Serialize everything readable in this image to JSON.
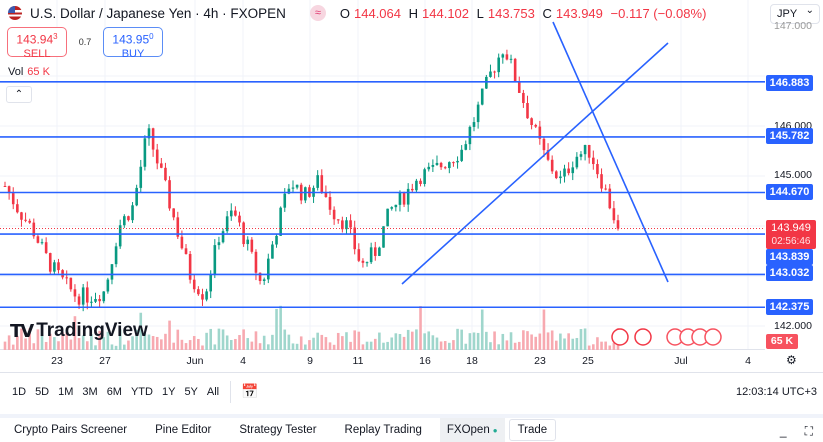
{
  "header": {
    "title": "U.S. Dollar / Japanese Yen · 4h · FXOPEN",
    "indicator_icon": "≈",
    "ohlc": {
      "o": "144.064",
      "h": "144.102",
      "l": "143.753",
      "c": "143.949",
      "change": "−0.117 (−0.08%)"
    }
  },
  "trade": {
    "sell_price": "143.94",
    "sell_sup": "3",
    "sell_label": "SELL",
    "spread": "0.7",
    "buy_price": "143.95",
    "buy_sup": "0",
    "buy_label": "BUY"
  },
  "volume": {
    "label": "Vol",
    "value": "65 K",
    "axis_label": "65 K"
  },
  "symbol_select": "JPY",
  "price_axis": {
    "ticks": [
      "147.000",
      "146.000",
      "145.000",
      "142.000"
    ],
    "scale": {
      "min": 141.5,
      "max": 148.5
    }
  },
  "levels": [
    "146.883",
    "145.782",
    "144.670",
    "143.839",
    "143.032",
    "142.375"
  ],
  "current": {
    "price": "143.949",
    "countdown": "02:56:46"
  },
  "colors": {
    "up": "#089981",
    "down": "#f23645",
    "line": "#2962ff"
  },
  "chart_data": {
    "type": "candlestick",
    "keypoint_closes": [
      144.8,
      144.3,
      143.9,
      143.3,
      142.9,
      142.6,
      142.6,
      142.7,
      144.0,
      144.4,
      145.9,
      145.0,
      144.0,
      143.0,
      142.6,
      143.8,
      144.3,
      143.6,
      142.8,
      143.9,
      144.9,
      144.6,
      144.9,
      144.3,
      144.0,
      143.2,
      143.5,
      144.3,
      144.6,
      145.0,
      145.1,
      145.3,
      145.5,
      146.2,
      147.0,
      147.6,
      146.8,
      146.0,
      145.3,
      144.9,
      145.4,
      145.5,
      144.8,
      143.95
    ]
  },
  "time_axis": [
    "23",
    "27",
    "Jun",
    "4",
    "9",
    "11",
    "16",
    "18",
    "23",
    "25",
    "Jul",
    "4"
  ],
  "brand": "TradingView",
  "toolbar": {
    "ranges": [
      "1D",
      "5D",
      "1M",
      "3M",
      "6M",
      "YTD",
      "1Y",
      "5Y",
      "All"
    ],
    "clock": "12:03:14 UTC+3"
  },
  "bottom_tabs": [
    "Crypto Pairs Screener",
    "Pine Editor",
    "Strategy Tester",
    "Replay Trading"
  ],
  "broker_tab": "FXOpen",
  "trade_tab": "Trade"
}
